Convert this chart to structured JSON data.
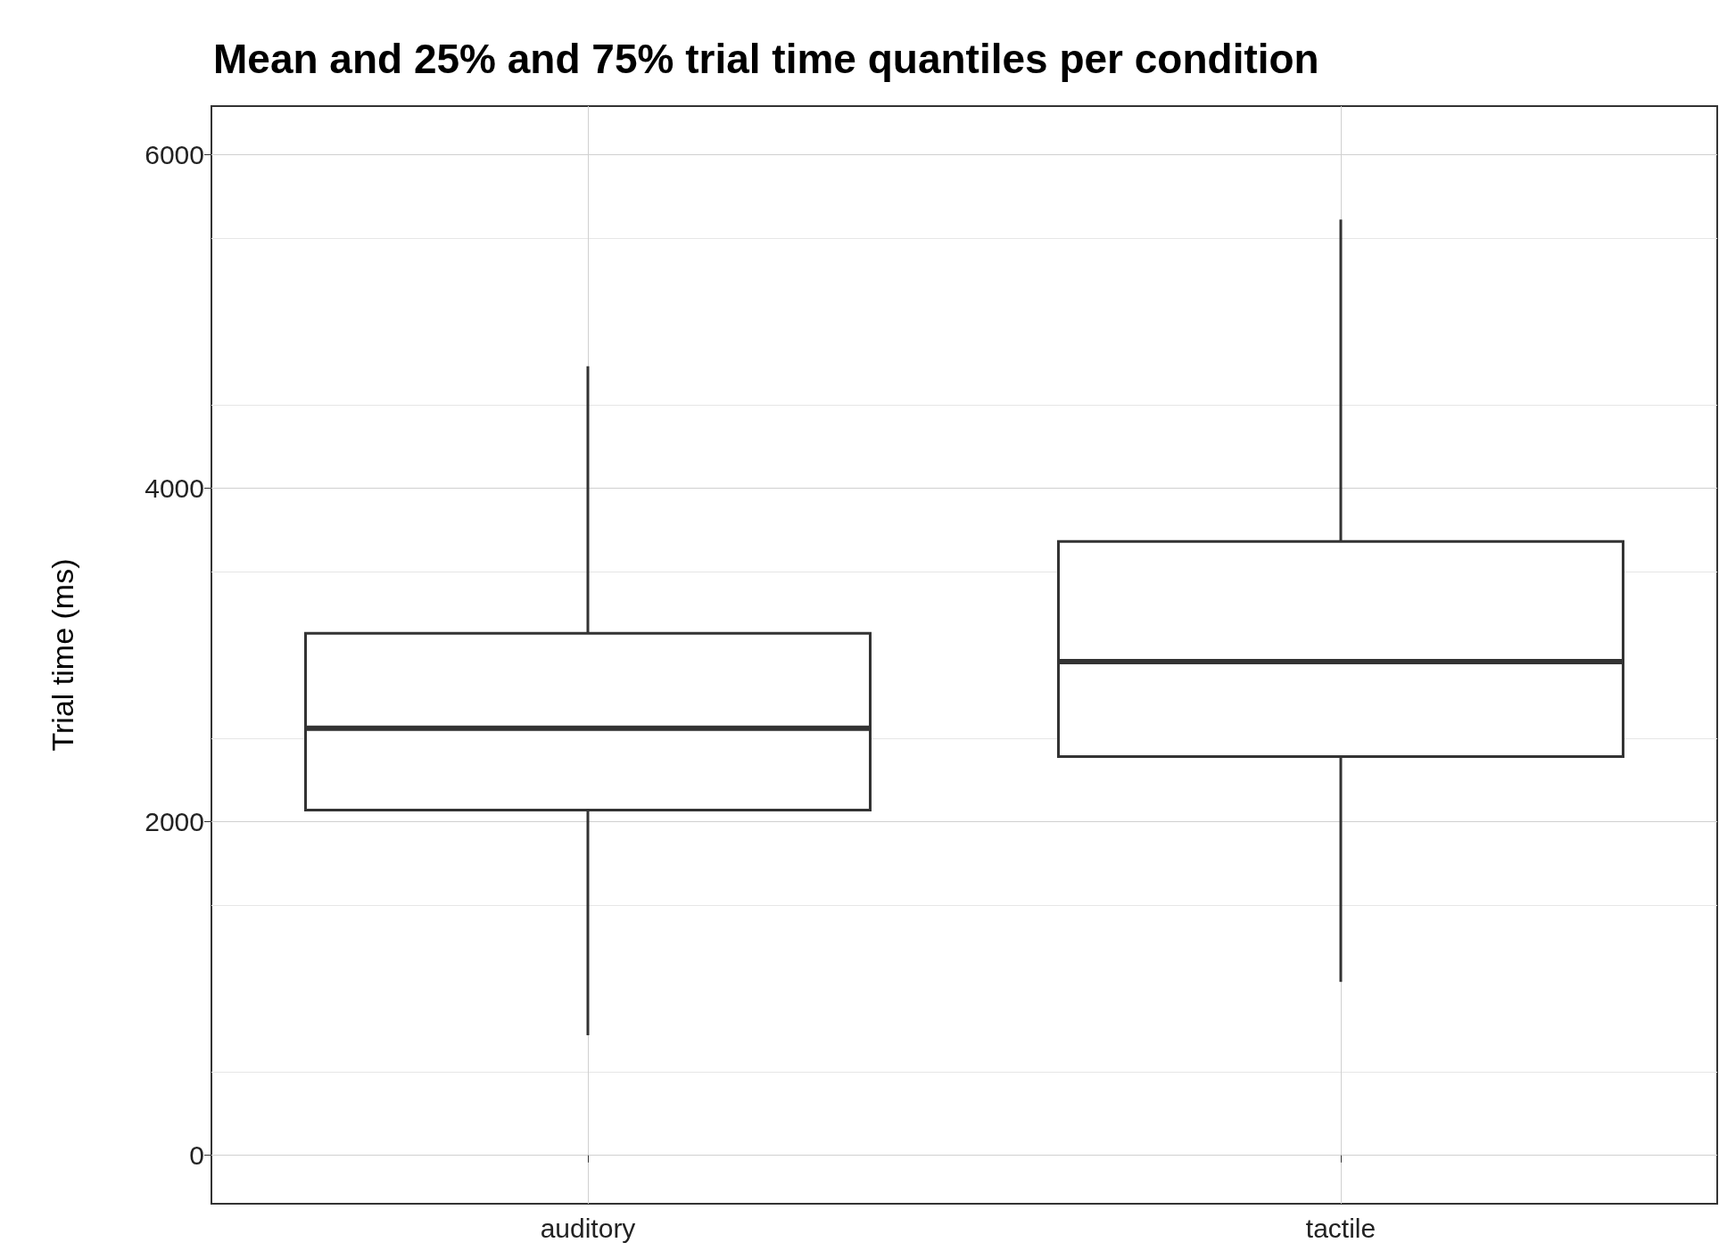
{
  "chart_data": {
    "type": "box",
    "title": "Mean and 25% and 75% trial time quantiles per condition",
    "ylabel": "Trial time (ms)",
    "categories": [
      "auditory",
      "tactile"
    ],
    "boxes": [
      {
        "low": 720,
        "q1": 2070,
        "median": 2560,
        "q3": 3130,
        "high": 4730
      },
      {
        "low": 1040,
        "q1": 2390,
        "median": 2960,
        "q3": 3680,
        "high": 5610
      }
    ],
    "color": "#333333",
    "ylim": [
      -290,
      6290
    ],
    "yticks": [
      0,
      2000,
      4000,
      6000
    ],
    "grid": true
  }
}
